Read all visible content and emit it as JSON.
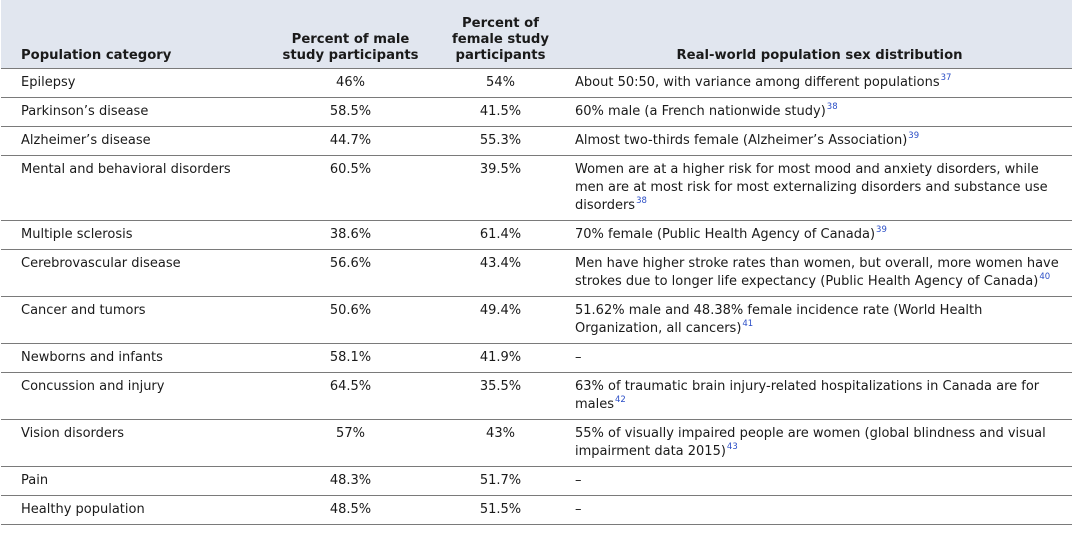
{
  "headers": {
    "category": "Population category",
    "male": "Percent of male study participants",
    "female": "Percent of female study participants",
    "real": "Real-world population sex distribution"
  },
  "rows": [
    {
      "category": "Epilepsy",
      "male": "46%",
      "female": "54%",
      "real": "About 50:50, with variance among different populations",
      "ref": "37"
    },
    {
      "category": "Parkinson’s disease",
      "male": "58.5%",
      "female": "41.5%",
      "real": "60% male (a French nationwide study)",
      "ref": "38"
    },
    {
      "category": "Alzheimer’s disease",
      "male": "44.7%",
      "female": "55.3%",
      "real": "Almost two-thirds female (Alzheimer’s Association)",
      "ref": "39"
    },
    {
      "category": "Mental and behavioral disorders",
      "male": "60.5%",
      "female": "39.5%",
      "real": "Women are at a higher risk for most mood and anxiety disorders, while men are at most risk for most externalizing disorders and substance use disorders",
      "ref": "38"
    },
    {
      "category": "Multiple sclerosis",
      "male": "38.6%",
      "female": "61.4%",
      "real": "70% female (Public Health Agency of Canada)",
      "ref": "39"
    },
    {
      "category": "Cerebrovascular disease",
      "male": "56.6%",
      "female": "43.4%",
      "real": "Men have higher stroke rates than women, but overall, more women have strokes due to longer life expectancy (Public Health Agency of Canada)",
      "ref": "40"
    },
    {
      "category": "Cancer and tumors",
      "male": "50.6%",
      "female": "49.4%",
      "real": "51.62% male and 48.38% female incidence rate (World Health Organization, all cancers)",
      "ref": "41"
    },
    {
      "category": "Newborns and infants",
      "male": "58.1%",
      "female": "41.9%",
      "real": "–",
      "ref": ""
    },
    {
      "category": "Concussion and injury",
      "male": "64.5%",
      "female": "35.5%",
      "real": "63% of traumatic brain injury-related hospitalizations in Canada are for males",
      "ref": "42"
    },
    {
      "category": "Vision disorders",
      "male": "57%",
      "female": "43%",
      "real": "55% of visually impaired people are women (global blindness and visual impairment data 2015)",
      "ref": "43"
    },
    {
      "category": "Pain",
      "male": "48.3%",
      "female": "51.7%",
      "real": "–",
      "ref": ""
    },
    {
      "category": "Healthy population",
      "male": "48.5%",
      "female": "51.5%",
      "real": "–",
      "ref": ""
    }
  ]
}
